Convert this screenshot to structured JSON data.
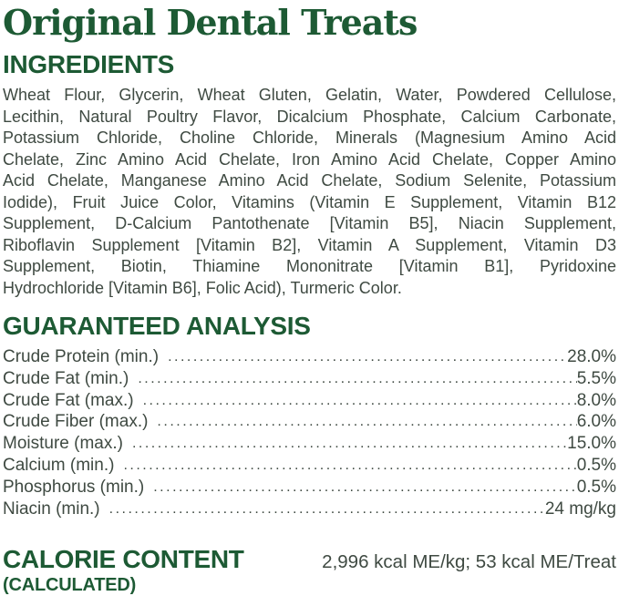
{
  "page": {
    "title": "Original Dental Treats"
  },
  "colors": {
    "brand_green": "#1d5a34",
    "body_text": "#3f4a42"
  },
  "ingredients": {
    "heading": "INGREDIENTS",
    "lines": [
      "Wheat Flour, Glycerin, Wheat Gluten, Gelatin, Water, Powdered Cellulose,",
      "Lecithin, Natural Poultry Flavor, Dicalcium Phosphate, Calcium Carbonate,",
      "Potassium Chloride, Choline Chloride, Minerals (Magnesium Amino Acid",
      "Chelate, Zinc Amino Acid Chelate, Iron Amino Acid Chelate, Copper Amino",
      "Acid Chelate, Manganese Amino Acid Chelate, Sodium Selenite, Potassium",
      "Iodide), Fruit Juice Color, Vitamins (Vitamin E Supplement, Vitamin B12",
      "Supplement, D-Calcium Pantothenate [Vitamin B5], Niacin Supplement,",
      "Riboflavin Supplement [Vitamin B2], Vitamin A Supplement, Vitamin D3",
      "Supplement, Biotin, Thiamine Mononitrate [Vitamin B1], Pyridoxine",
      "Hydrochloride [Vitamin B6], Folic Acid), Turmeric Color."
    ]
  },
  "guaranteed_analysis": {
    "heading": "GUARANTEED ANALYSIS",
    "rows": [
      {
        "label": "Crude Protein (min.)",
        "value": "28.0%"
      },
      {
        "label": "Crude Fat (min.)",
        "value": "5.5%"
      },
      {
        "label": "Crude Fat (max.)",
        "value": "8.0%"
      },
      {
        "label": "Crude Fiber (max.)",
        "value": "6.0%"
      },
      {
        "label": "Moisture (max.)",
        "value": "15.0%"
      },
      {
        "label": "Calcium (min.)",
        "value": "0.5%"
      },
      {
        "label": "Phosphorus (min.)",
        "value": "0.5%"
      },
      {
        "label": "Niacin (min.)",
        "value": "24 mg/kg"
      }
    ]
  },
  "calorie_content": {
    "heading": "CALORIE CONTENT",
    "subheading": "(CALCULATED)",
    "value": "2,996 kcal ME/kg; 53 kcal ME/Treat"
  }
}
